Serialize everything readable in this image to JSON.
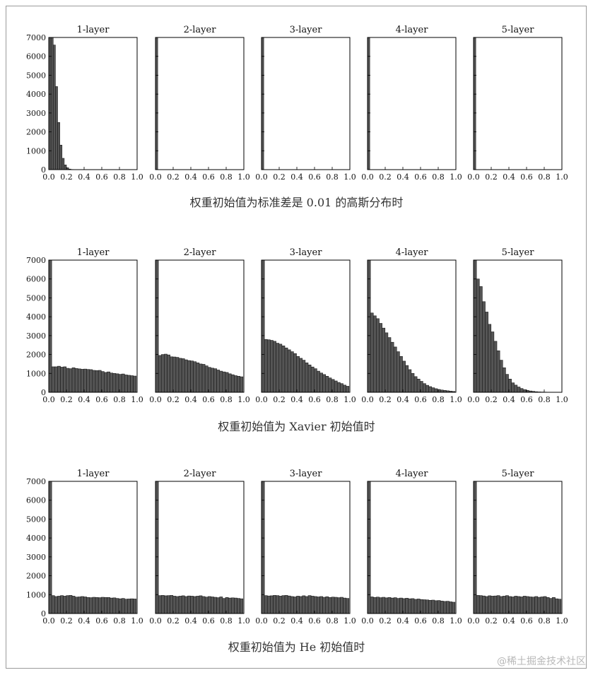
{
  "chart_data": [
    {
      "type": "histogram-grid",
      "caption": "权重初始值为标准差是 0.01 的高斯分布时",
      "xlim": [
        0,
        1
      ],
      "ylim": [
        0,
        7000
      ],
      "xticks": [
        "0.0",
        "0.2",
        "0.4",
        "0.6",
        "0.8",
        "1.0"
      ],
      "yticks": [
        "0",
        "1000",
        "2000",
        "3000",
        "4000",
        "5000",
        "6000",
        "7000"
      ],
      "panels": [
        {
          "title": "1-layer",
          "bin_width": 0.025,
          "values": [
            7000,
            7000,
            6600,
            4400,
            2500,
            1300,
            600,
            250,
            100,
            30,
            10
          ]
        },
        {
          "title": "2-layer",
          "bin_width": 0.025,
          "values": [
            7000
          ]
        },
        {
          "title": "3-layer",
          "bin_width": 0.025,
          "values": [
            7000
          ]
        },
        {
          "title": "4-layer",
          "bin_width": 0.025,
          "values": [
            7000
          ]
        },
        {
          "title": "5-layer",
          "bin_width": 0.025,
          "values": [
            7000
          ]
        }
      ]
    },
    {
      "type": "histogram-grid",
      "caption": "权重初始值为 Xavier 初始值时",
      "xlim": [
        0,
        1
      ],
      "ylim": [
        0,
        7000
      ],
      "xticks": [
        "0.0",
        "0.2",
        "0.4",
        "0.6",
        "0.8",
        "1.0"
      ],
      "yticks": [
        "0",
        "1000",
        "2000",
        "3000",
        "4000",
        "5000",
        "6000",
        "7000"
      ],
      "panels": [
        {
          "title": "1-layer",
          "bin_width": 0.033,
          "values": [
            7000,
            1350,
            1350,
            1380,
            1330,
            1350,
            1270,
            1250,
            1300,
            1260,
            1240,
            1220,
            1230,
            1210,
            1200,
            1160,
            1150,
            1160,
            1100,
            1050,
            1080,
            1020,
            1000,
            980,
            950,
            970,
            920,
            900,
            880,
            860
          ]
        },
        {
          "title": "2-layer",
          "bin_width": 0.033,
          "values": [
            7000,
            1950,
            2000,
            2020,
            1980,
            1880,
            1870,
            1850,
            1800,
            1780,
            1720,
            1680,
            1660,
            1620,
            1560,
            1500,
            1480,
            1400,
            1320,
            1280,
            1250,
            1180,
            1120,
            1080,
            1050,
            980,
            930,
            880,
            850,
            820
          ]
        },
        {
          "title": "3-layer",
          "bin_width": 0.033,
          "values": [
            7000,
            2800,
            2780,
            2750,
            2700,
            2600,
            2550,
            2460,
            2350,
            2250,
            2150,
            2050,
            1900,
            1800,
            1700,
            1560,
            1450,
            1340,
            1250,
            1120,
            1020,
            940,
            850,
            760,
            680,
            600,
            520,
            460,
            380,
            320
          ]
        },
        {
          "title": "4-layer",
          "bin_width": 0.033,
          "values": [
            7000,
            4200,
            4050,
            3900,
            3650,
            3400,
            3150,
            2900,
            2650,
            2400,
            2150,
            1900,
            1650,
            1420,
            1200,
            1000,
            830,
            700,
            580,
            460,
            370,
            300,
            240,
            190,
            150,
            120,
            100,
            80,
            60,
            45
          ]
        },
        {
          "title": "5-layer",
          "bin_width": 0.033,
          "values": [
            7000,
            6000,
            5600,
            4800,
            4250,
            3600,
            3200,
            2700,
            2200,
            1700,
            1300,
            950,
            700,
            500,
            380,
            280,
            200,
            140,
            100,
            70,
            50,
            30,
            20,
            15,
            10,
            5
          ]
        }
      ]
    },
    {
      "type": "histogram-grid",
      "caption": "权重初始值为 He 初始值时",
      "xlim": [
        0,
        1
      ],
      "ylim": [
        0,
        7000
      ],
      "xticks": [
        "0.0",
        "0.2",
        "0.4",
        "0.6",
        "0.8",
        "1.0"
      ],
      "yticks": [
        "0",
        "1000",
        "2000",
        "3000",
        "4000",
        "5000",
        "6000",
        "7000"
      ],
      "panels": [
        {
          "title": "1-layer",
          "bin_width": 0.033,
          "values": [
            7000,
            950,
            900,
            920,
            950,
            920,
            950,
            960,
            920,
            870,
            880,
            900,
            880,
            850,
            840,
            860,
            850,
            840,
            860,
            850,
            850,
            820,
            830,
            800,
            780,
            800,
            760,
            770,
            780,
            770
          ]
        },
        {
          "title": "2-layer",
          "bin_width": 0.033,
          "values": [
            7000,
            950,
            960,
            940,
            950,
            960,
            920,
            900,
            920,
            940,
            900,
            930,
            920,
            900,
            920,
            940,
            900,
            870,
            900,
            880,
            860,
            840,
            880,
            800,
            850,
            820,
            830,
            820,
            800,
            780
          ]
        },
        {
          "title": "3-layer",
          "bin_width": 0.033,
          "values": [
            7000,
            950,
            930,
            940,
            960,
            950,
            920,
            950,
            960,
            930,
            900,
            880,
            920,
            900,
            940,
            900,
            950,
            920,
            900,
            880,
            900,
            860,
            890,
            850,
            870,
            860,
            840,
            860,
            820,
            800
          ]
        },
        {
          "title": "4-layer",
          "bin_width": 0.033,
          "values": [
            7000,
            880,
            850,
            870,
            840,
            860,
            830,
            850,
            820,
            840,
            800,
            820,
            790,
            810,
            780,
            790,
            750,
            770,
            740,
            730,
            720,
            700,
            710,
            680,
            690,
            660,
            640,
            650,
            620,
            600
          ]
        },
        {
          "title": "5-layer",
          "bin_width": 0.033,
          "values": [
            7000,
            960,
            950,
            930,
            900,
            940,
            920,
            930,
            950,
            900,
            920,
            950,
            900,
            880,
            920,
            900,
            880,
            920,
            900,
            880,
            870,
            900,
            860,
            880,
            900,
            850,
            800,
            850,
            780,
            760
          ]
        }
      ]
    }
  ],
  "watermark": "@稀土掘金技术社区"
}
